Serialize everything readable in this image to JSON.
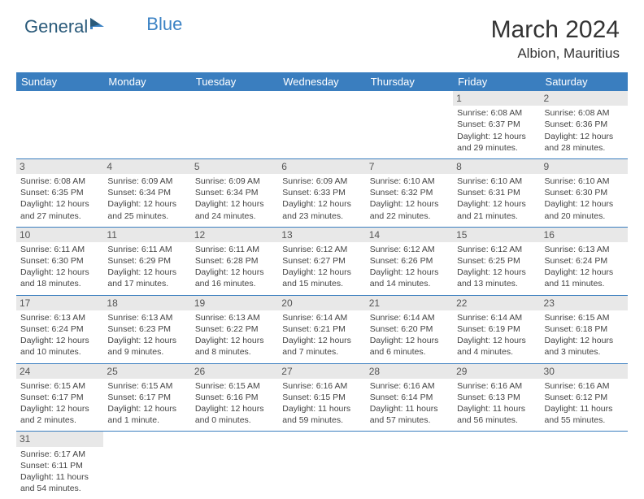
{
  "logo": {
    "text1": "General",
    "text2": "Blue"
  },
  "title": "March 2024",
  "location": "Albion, Mauritius",
  "colors": {
    "header_bg": "#3a7ebf",
    "header_fg": "#ffffff",
    "daynum_bg": "#e8e8e8",
    "border": "#3a7ebf",
    "logo_dark": "#2a5a7a",
    "logo_blue": "#3b82c4"
  },
  "weekdays": [
    "Sunday",
    "Monday",
    "Tuesday",
    "Wednesday",
    "Thursday",
    "Friday",
    "Saturday"
  ],
  "weeks": [
    [
      {
        "n": "",
        "lines": [
          "",
          "",
          "",
          ""
        ]
      },
      {
        "n": "",
        "lines": [
          "",
          "",
          "",
          ""
        ]
      },
      {
        "n": "",
        "lines": [
          "",
          "",
          "",
          ""
        ]
      },
      {
        "n": "",
        "lines": [
          "",
          "",
          "",
          ""
        ]
      },
      {
        "n": "",
        "lines": [
          "",
          "",
          "",
          ""
        ]
      },
      {
        "n": "1",
        "lines": [
          "Sunrise: 6:08 AM",
          "Sunset: 6:37 PM",
          "Daylight: 12 hours",
          "and 29 minutes."
        ]
      },
      {
        "n": "2",
        "lines": [
          "Sunrise: 6:08 AM",
          "Sunset: 6:36 PM",
          "Daylight: 12 hours",
          "and 28 minutes."
        ]
      }
    ],
    [
      {
        "n": "3",
        "lines": [
          "Sunrise: 6:08 AM",
          "Sunset: 6:35 PM",
          "Daylight: 12 hours",
          "and 27 minutes."
        ]
      },
      {
        "n": "4",
        "lines": [
          "Sunrise: 6:09 AM",
          "Sunset: 6:34 PM",
          "Daylight: 12 hours",
          "and 25 minutes."
        ]
      },
      {
        "n": "5",
        "lines": [
          "Sunrise: 6:09 AM",
          "Sunset: 6:34 PM",
          "Daylight: 12 hours",
          "and 24 minutes."
        ]
      },
      {
        "n": "6",
        "lines": [
          "Sunrise: 6:09 AM",
          "Sunset: 6:33 PM",
          "Daylight: 12 hours",
          "and 23 minutes."
        ]
      },
      {
        "n": "7",
        "lines": [
          "Sunrise: 6:10 AM",
          "Sunset: 6:32 PM",
          "Daylight: 12 hours",
          "and 22 minutes."
        ]
      },
      {
        "n": "8",
        "lines": [
          "Sunrise: 6:10 AM",
          "Sunset: 6:31 PM",
          "Daylight: 12 hours",
          "and 21 minutes."
        ]
      },
      {
        "n": "9",
        "lines": [
          "Sunrise: 6:10 AM",
          "Sunset: 6:30 PM",
          "Daylight: 12 hours",
          "and 20 minutes."
        ]
      }
    ],
    [
      {
        "n": "10",
        "lines": [
          "Sunrise: 6:11 AM",
          "Sunset: 6:30 PM",
          "Daylight: 12 hours",
          "and 18 minutes."
        ]
      },
      {
        "n": "11",
        "lines": [
          "Sunrise: 6:11 AM",
          "Sunset: 6:29 PM",
          "Daylight: 12 hours",
          "and 17 minutes."
        ]
      },
      {
        "n": "12",
        "lines": [
          "Sunrise: 6:11 AM",
          "Sunset: 6:28 PM",
          "Daylight: 12 hours",
          "and 16 minutes."
        ]
      },
      {
        "n": "13",
        "lines": [
          "Sunrise: 6:12 AM",
          "Sunset: 6:27 PM",
          "Daylight: 12 hours",
          "and 15 minutes."
        ]
      },
      {
        "n": "14",
        "lines": [
          "Sunrise: 6:12 AM",
          "Sunset: 6:26 PM",
          "Daylight: 12 hours",
          "and 14 minutes."
        ]
      },
      {
        "n": "15",
        "lines": [
          "Sunrise: 6:12 AM",
          "Sunset: 6:25 PM",
          "Daylight: 12 hours",
          "and 13 minutes."
        ]
      },
      {
        "n": "16",
        "lines": [
          "Sunrise: 6:13 AM",
          "Sunset: 6:24 PM",
          "Daylight: 12 hours",
          "and 11 minutes."
        ]
      }
    ],
    [
      {
        "n": "17",
        "lines": [
          "Sunrise: 6:13 AM",
          "Sunset: 6:24 PM",
          "Daylight: 12 hours",
          "and 10 minutes."
        ]
      },
      {
        "n": "18",
        "lines": [
          "Sunrise: 6:13 AM",
          "Sunset: 6:23 PM",
          "Daylight: 12 hours",
          "and 9 minutes."
        ]
      },
      {
        "n": "19",
        "lines": [
          "Sunrise: 6:13 AM",
          "Sunset: 6:22 PM",
          "Daylight: 12 hours",
          "and 8 minutes."
        ]
      },
      {
        "n": "20",
        "lines": [
          "Sunrise: 6:14 AM",
          "Sunset: 6:21 PM",
          "Daylight: 12 hours",
          "and 7 minutes."
        ]
      },
      {
        "n": "21",
        "lines": [
          "Sunrise: 6:14 AM",
          "Sunset: 6:20 PM",
          "Daylight: 12 hours",
          "and 6 minutes."
        ]
      },
      {
        "n": "22",
        "lines": [
          "Sunrise: 6:14 AM",
          "Sunset: 6:19 PM",
          "Daylight: 12 hours",
          "and 4 minutes."
        ]
      },
      {
        "n": "23",
        "lines": [
          "Sunrise: 6:15 AM",
          "Sunset: 6:18 PM",
          "Daylight: 12 hours",
          "and 3 minutes."
        ]
      }
    ],
    [
      {
        "n": "24",
        "lines": [
          "Sunrise: 6:15 AM",
          "Sunset: 6:17 PM",
          "Daylight: 12 hours",
          "and 2 minutes."
        ]
      },
      {
        "n": "25",
        "lines": [
          "Sunrise: 6:15 AM",
          "Sunset: 6:17 PM",
          "Daylight: 12 hours",
          "and 1 minute."
        ]
      },
      {
        "n": "26",
        "lines": [
          "Sunrise: 6:15 AM",
          "Sunset: 6:16 PM",
          "Daylight: 12 hours",
          "and 0 minutes."
        ]
      },
      {
        "n": "27",
        "lines": [
          "Sunrise: 6:16 AM",
          "Sunset: 6:15 PM",
          "Daylight: 11 hours",
          "and 59 minutes."
        ]
      },
      {
        "n": "28",
        "lines": [
          "Sunrise: 6:16 AM",
          "Sunset: 6:14 PM",
          "Daylight: 11 hours",
          "and 57 minutes."
        ]
      },
      {
        "n": "29",
        "lines": [
          "Sunrise: 6:16 AM",
          "Sunset: 6:13 PM",
          "Daylight: 11 hours",
          "and 56 minutes."
        ]
      },
      {
        "n": "30",
        "lines": [
          "Sunrise: 6:16 AM",
          "Sunset: 6:12 PM",
          "Daylight: 11 hours",
          "and 55 minutes."
        ]
      }
    ],
    [
      {
        "n": "31",
        "lines": [
          "Sunrise: 6:17 AM",
          "Sunset: 6:11 PM",
          "Daylight: 11 hours",
          "and 54 minutes."
        ]
      },
      {
        "n": "",
        "lines": [
          "",
          "",
          "",
          ""
        ]
      },
      {
        "n": "",
        "lines": [
          "",
          "",
          "",
          ""
        ]
      },
      {
        "n": "",
        "lines": [
          "",
          "",
          "",
          ""
        ]
      },
      {
        "n": "",
        "lines": [
          "",
          "",
          "",
          ""
        ]
      },
      {
        "n": "",
        "lines": [
          "",
          "",
          "",
          ""
        ]
      },
      {
        "n": "",
        "lines": [
          "",
          "",
          "",
          ""
        ]
      }
    ]
  ]
}
